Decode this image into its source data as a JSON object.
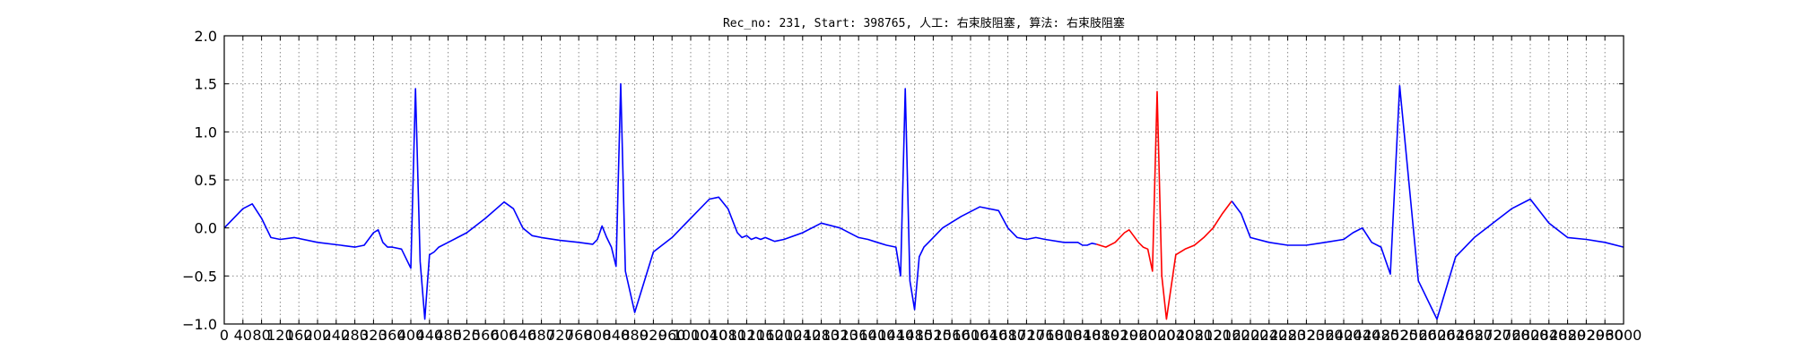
{
  "chart_data": {
    "type": "line",
    "title": "Rec_no: 231, Start: 398765, 人工: 右束肢阻塞, 算法: 右束肢阻塞",
    "xlabel": "",
    "ylabel": "",
    "xlim": [
      0,
      3000
    ],
    "ylim": [
      -1.0,
      2.0
    ],
    "grid": true,
    "y_ticks": [
      -1.0,
      -0.5,
      0.0,
      0.5,
      1.0,
      1.5,
      2.0
    ],
    "y_tick_labels": [
      "−1.0",
      "−0.5",
      "0.0",
      "0.5",
      "1.0",
      "1.5",
      "2.0"
    ],
    "x_ticks": [
      0,
      40,
      80,
      120,
      160,
      200,
      240,
      280,
      320,
      360,
      400,
      440,
      480,
      520,
      560,
      600,
      640,
      680,
      720,
      760,
      800,
      840,
      880,
      920,
      960,
      1000,
      1040,
      1080,
      1120,
      1160,
      1200,
      1240,
      1280,
      1320,
      1360,
      1400,
      1440,
      1480,
      1520,
      1560,
      1600,
      1640,
      1680,
      1720,
      1760,
      1800,
      1840,
      1880,
      1920,
      1960,
      2000,
      2040,
      2080,
      2120,
      2160,
      2200,
      2240,
      2280,
      2320,
      2360,
      2400,
      2440,
      2480,
      2520,
      2560,
      2600,
      2640,
      2680,
      2720,
      2760,
      2800,
      2840,
      2880,
      2920,
      2960,
      3000
    ],
    "x_tick_labels": [
      "0",
      "40",
      "80",
      "120",
      "160",
      "200",
      "240",
      "280",
      "320",
      "360",
      "400",
      "440",
      "480",
      "520",
      "560",
      "600",
      "640",
      "680",
      "720",
      "760",
      "800",
      "840",
      "880",
      "920",
      "960",
      "1000",
      "1040",
      "1080",
      "1120",
      "1160",
      "1200",
      "1240",
      "1280",
      "1320",
      "1360",
      "1400",
      "1440",
      "1480",
      "1520",
      "1560",
      "1600",
      "1640",
      "1680",
      "1720",
      "1760",
      "1800",
      "1840",
      "1880",
      "1920",
      "1960",
      "2000",
      "2040",
      "2080",
      "2120",
      "2160",
      "2200",
      "2240",
      "2280",
      "2320",
      "2360",
      "2400",
      "2440",
      "2480",
      "2520",
      "2560",
      "2600",
      "2640",
      "2680",
      "2720",
      "2760",
      "2800",
      "2840",
      "2880",
      "2920",
      "2960",
      "3000"
    ],
    "series": [
      {
        "color": "#0000ff",
        "x": [
          0,
          20,
          40,
          60,
          80,
          100,
          120,
          150,
          200,
          250,
          280,
          300,
          320,
          330,
          340,
          350,
          360,
          380,
          400,
          410,
          420,
          430,
          440,
          450,
          460,
          480,
          520,
          560,
          600,
          620,
          640,
          660,
          680,
          720,
          760,
          790,
          800,
          810,
          820,
          830,
          840,
          850,
          860,
          880,
          920,
          960,
          1000,
          1040,
          1060,
          1080,
          1100,
          1110,
          1120,
          1130,
          1140,
          1150,
          1160,
          1170,
          1180,
          1200,
          1240,
          1280,
          1320,
          1360,
          1380,
          1400,
          1420,
          1440,
          1450,
          1460,
          1470,
          1480,
          1490,
          1500,
          1510,
          1520,
          1540,
          1580,
          1620,
          1660,
          1680,
          1700,
          1720,
          1740,
          1760,
          1800,
          1830,
          1840,
          1850,
          1860,
          1870
        ],
        "y": [
          0.0,
          0.1,
          0.2,
          0.25,
          0.1,
          -0.1,
          -0.12,
          -0.1,
          -0.15,
          -0.18,
          -0.2,
          -0.18,
          -0.05,
          -0.02,
          -0.15,
          -0.2,
          -0.2,
          -0.22,
          -0.42,
          1.45,
          -0.35,
          -0.95,
          -0.28,
          -0.25,
          -0.2,
          -0.15,
          -0.05,
          0.1,
          0.27,
          0.2,
          0.0,
          -0.08,
          -0.1,
          -0.13,
          -0.15,
          -0.17,
          -0.12,
          0.02,
          -0.1,
          -0.2,
          -0.4,
          1.5,
          -0.45,
          -0.88,
          -0.25,
          -0.1,
          0.1,
          0.3,
          0.32,
          0.2,
          -0.05,
          -0.1,
          -0.08,
          -0.12,
          -0.1,
          -0.12,
          -0.1,
          -0.12,
          -0.14,
          -0.12,
          -0.05,
          0.05,
          0.0,
          -0.1,
          -0.12,
          -0.15,
          -0.18,
          -0.2,
          -0.5,
          1.45,
          -0.55,
          -0.85,
          -0.3,
          -0.2,
          -0.15,
          -0.1,
          0.0,
          0.12,
          0.22,
          0.18,
          0.0,
          -0.1,
          -0.12,
          -0.1,
          -0.12,
          -0.15,
          -0.15,
          -0.18,
          -0.18,
          -0.16,
          -0.17
        ]
      },
      {
        "color": "#ff0000",
        "x": [
          1870,
          1890,
          1910,
          1930,
          1940,
          1960,
          1970,
          1980,
          1990,
          2000,
          2010,
          2020,
          2040,
          2060,
          2080,
          2100,
          2120,
          2140,
          2160
        ],
        "y": [
          -0.17,
          -0.2,
          -0.15,
          -0.05,
          -0.02,
          -0.15,
          -0.2,
          -0.22,
          -0.45,
          1.42,
          -0.5,
          -0.95,
          -0.28,
          -0.22,
          -0.18,
          -0.1,
          0.0,
          0.15,
          0.28
        ]
      },
      {
        "color": "#0000ff",
        "x": [
          2160,
          2180,
          2200,
          2240,
          2280,
          2320,
          2360,
          2400,
          2420,
          2440,
          2460,
          2480,
          2500,
          2520,
          2560,
          2600,
          2640,
          2680,
          2720,
          2760,
          2800,
          2840,
          2880,
          2920,
          2960,
          3000
        ],
        "y": [
          0.28,
          0.15,
          -0.1,
          -0.15,
          -0.18,
          -0.18,
          -0.15,
          -0.12,
          -0.05,
          0.0,
          -0.15,
          -0.2,
          -0.48,
          1.48,
          -0.55,
          -0.95,
          -0.3,
          -0.1,
          0.05,
          0.2,
          0.3,
          0.05,
          -0.1,
          -0.12,
          -0.15,
          -0.2
        ]
      }
    ]
  }
}
